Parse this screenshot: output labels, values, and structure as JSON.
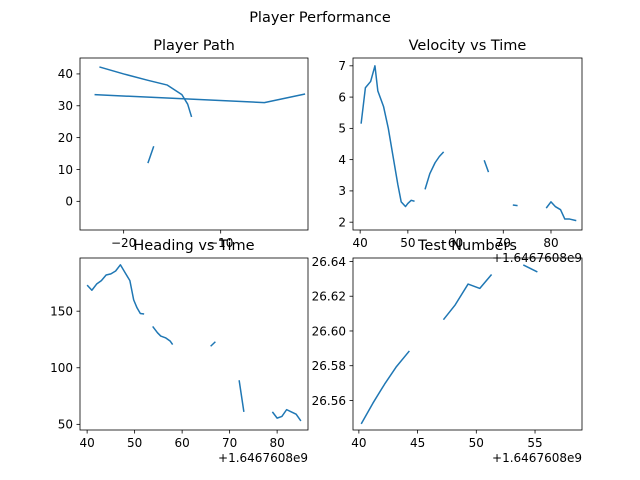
{
  "figure": {
    "suptitle": "Player Performance"
  },
  "chart_data": [
    {
      "type": "line",
      "title": "Player Path",
      "xlabel": "",
      "ylabel": "",
      "xlim": [
        -24.5,
        -1.0
      ],
      "ylim": [
        -9,
        45
      ],
      "xticks": [
        -20,
        -10
      ],
      "xtick_labels": [
        "−20",
        "−10"
      ],
      "yticks": [
        0,
        10,
        20,
        30,
        40
      ],
      "ytick_labels": [
        "0",
        "10",
        "20",
        "30",
        "40"
      ],
      "offset_label": "",
      "color": "#1f77b4",
      "segments": [
        [
          [
            -22.5,
            42.2
          ],
          [
            -20.0,
            40.0
          ],
          [
            -17.5,
            38.0
          ],
          [
            -15.5,
            36.5
          ],
          [
            -14.0,
            33.5
          ],
          [
            -13.4,
            30.5
          ],
          [
            -13.0,
            26.5
          ]
        ],
        [
          [
            -23.0,
            33.5
          ],
          [
            -5.5,
            31.0
          ],
          [
            -1.3,
            33.7
          ]
        ],
        [
          [
            -17.5,
            12.0
          ],
          [
            -16.9,
            17.3
          ]
        ]
      ]
    },
    {
      "type": "line",
      "title": "Velocity vs Time",
      "xlabel": "",
      "ylabel": "",
      "xlim": [
        38.5,
        86.5
      ],
      "ylim": [
        1.75,
        7.25
      ],
      "xticks": [
        40,
        50,
        60,
        70,
        80
      ],
      "xtick_labels": [
        "40",
        "50",
        "60",
        "70",
        "80"
      ],
      "yticks": [
        2,
        3,
        4,
        5,
        6,
        7
      ],
      "ytick_labels": [
        "2",
        "3",
        "4",
        "5",
        "6",
        "7"
      ],
      "offset_label": "+1.6467608e9",
      "color": "#1f77b4",
      "segments": [
        [
          [
            40.2,
            5.15
          ],
          [
            41.1,
            6.3
          ],
          [
            42.2,
            6.5
          ],
          [
            43.1,
            7.0
          ],
          [
            43.7,
            6.2
          ],
          [
            44.9,
            5.7
          ],
          [
            45.9,
            5.0
          ],
          [
            46.9,
            4.1
          ],
          [
            47.9,
            3.2
          ],
          [
            48.6,
            2.65
          ],
          [
            49.5,
            2.5
          ],
          [
            50.0,
            2.6
          ],
          [
            50.7,
            2.7
          ],
          [
            51.4,
            2.67
          ]
        ],
        [
          [
            53.6,
            3.05
          ],
          [
            54.6,
            3.55
          ],
          [
            55.7,
            3.9
          ],
          [
            56.6,
            4.1
          ],
          [
            57.5,
            4.25
          ]
        ],
        [
          [
            66.0,
            3.98
          ],
          [
            66.9,
            3.6
          ]
        ],
        [
          [
            72.0,
            2.55
          ],
          [
            73.0,
            2.53
          ]
        ],
        [
          [
            79.0,
            2.45
          ],
          [
            80.0,
            2.65
          ],
          [
            80.9,
            2.5
          ],
          [
            82.0,
            2.4
          ],
          [
            82.9,
            2.1
          ],
          [
            83.9,
            2.1
          ],
          [
            85.3,
            2.05
          ]
        ]
      ]
    },
    {
      "type": "line",
      "title": "Heading vs Time",
      "xlabel": "",
      "ylabel": "",
      "xlim": [
        38.5,
        86.5
      ],
      "ylim": [
        45,
        197
      ],
      "xticks": [
        40,
        50,
        60,
        70,
        80
      ],
      "xtick_labels": [
        "40",
        "50",
        "60",
        "70",
        "80"
      ],
      "yticks": [
        50,
        100,
        150
      ],
      "ytick_labels": [
        "50",
        "100",
        "150"
      ],
      "offset_label": "+1.6467608e9",
      "color": "#1f77b4",
      "segments": [
        [
          [
            40.0,
            173.0
          ],
          [
            41.0,
            168.5
          ],
          [
            42.0,
            174.0
          ],
          [
            43.0,
            177.0
          ],
          [
            44.0,
            182.0
          ],
          [
            45.0,
            183.0
          ],
          [
            46.0,
            185.5
          ],
          [
            47.0,
            191.0
          ],
          [
            48.0,
            184.0
          ],
          [
            49.0,
            177.0
          ],
          [
            49.8,
            160.0
          ],
          [
            50.5,
            153.0
          ],
          [
            51.2,
            148.0
          ],
          [
            52.0,
            147.5
          ]
        ],
        [
          [
            53.8,
            136.5
          ],
          [
            54.8,
            131.0
          ],
          [
            55.5,
            128.0
          ],
          [
            56.5,
            126.5
          ],
          [
            57.5,
            123.5
          ],
          [
            58.0,
            120.5
          ]
        ],
        [
          [
            66.0,
            119.0
          ],
          [
            67.0,
            123.0
          ]
        ],
        [
          [
            72.0,
            89.0
          ],
          [
            73.0,
            61.0
          ]
        ],
        [
          [
            79.0,
            61.0
          ],
          [
            80.0,
            55.5
          ],
          [
            81.0,
            57.0
          ],
          [
            82.0,
            63.0
          ],
          [
            83.0,
            61.0
          ],
          [
            84.0,
            59.0
          ],
          [
            85.0,
            53.0
          ]
        ]
      ]
    },
    {
      "type": "line",
      "title": "Test Numbers",
      "xlabel": "",
      "ylabel": "",
      "xlim": [
        39.5,
        59.0
      ],
      "ylim": [
        26.543,
        26.642
      ],
      "xticks": [
        40,
        45,
        50,
        55
      ],
      "xtick_labels": [
        "40",
        "45",
        "50",
        "55"
      ],
      "yticks": [
        26.56,
        26.58,
        26.6,
        26.62,
        26.64
      ],
      "ytick_labels": [
        "26.56",
        "26.58",
        "26.60",
        "26.62",
        "26.64"
      ],
      "offset_label": "+1.6467608e9",
      "color": "#1f77b4",
      "segments": [
        [
          [
            40.2,
            26.5465
          ],
          [
            41.2,
            26.5585
          ],
          [
            42.2,
            26.5695
          ],
          [
            43.2,
            26.5795
          ],
          [
            44.3,
            26.5885
          ]
        ],
        [
          [
            47.2,
            26.6065
          ],
          [
            48.2,
            26.615
          ],
          [
            49.3,
            26.627
          ],
          [
            50.3,
            26.6245
          ],
          [
            51.3,
            26.6325
          ]
        ],
        [
          [
            54.0,
            26.638
          ],
          [
            55.2,
            26.634
          ]
        ]
      ]
    }
  ]
}
